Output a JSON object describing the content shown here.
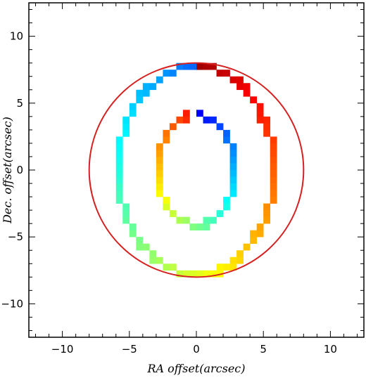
{
  "chart_data": {
    "type": "scatter",
    "title": "",
    "xlabel": "RA offset(arcsec)",
    "ylabel": "Dec. offset(arcsec)",
    "xlim": [
      -12.5,
      12.5
    ],
    "ylim": [
      -12.5,
      12.5
    ],
    "xticks": [
      -10,
      -5,
      0,
      5,
      10
    ],
    "yticks": [
      -10,
      -5,
      0,
      5,
      10
    ],
    "xtick_labels": [
      "−10",
      "−5",
      "0",
      "5",
      "10"
    ],
    "ytick_labels": [
      "−10",
      "−5",
      "0",
      "5",
      "10"
    ],
    "grid": false,
    "pixel_size_arcsec": 0.5,
    "circle": {
      "center": [
        0,
        0
      ],
      "radius": 8.0,
      "color": "#d62020"
    },
    "colormap": "jet",
    "rings": [
      {
        "name": "outer",
        "rx": 5.8,
        "ry": 7.8,
        "step_deg": 3.5,
        "color_start": 0.97,
        "color_direction": -1
      },
      {
        "name": "inner",
        "rx": 2.9,
        "ry": 4.1,
        "step_deg": 7,
        "color_start": 0.12,
        "color_direction": 1
      }
    ]
  }
}
